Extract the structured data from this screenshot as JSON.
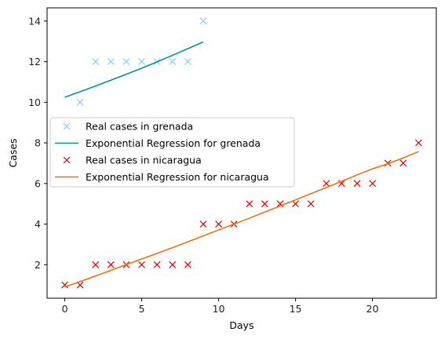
{
  "chart_data": {
    "type": "scatter",
    "title": "",
    "xlabel": "Days",
    "ylabel": "Cases",
    "xlim": [
      -1.15,
      24.15
    ],
    "ylim": [
      0.35,
      14.65
    ],
    "xticks": [
      0,
      5,
      10,
      15,
      20
    ],
    "yticks": [
      2,
      4,
      6,
      8,
      10,
      12,
      14
    ],
    "grid": false,
    "legend_position": "center-left",
    "series": [
      {
        "name": "Real cases in grenada",
        "kind": "points",
        "marker": "x",
        "color": "#87ceeb",
        "x": [
          0,
          1,
          2,
          3,
          4,
          5,
          6,
          7,
          8,
          9
        ],
        "y": [
          9,
          10,
          12,
          12,
          12,
          12,
          12,
          12,
          12,
          14
        ]
      },
      {
        "name": "Exponential Regression for grenada",
        "kind": "line",
        "color": "#009688",
        "x": [
          0,
          1,
          2,
          3,
          4,
          5,
          6,
          7,
          8,
          9
        ],
        "y": [
          10.25,
          10.52,
          10.8,
          11.09,
          11.38,
          11.68,
          11.99,
          12.31,
          12.64,
          12.97
        ]
      },
      {
        "name": "Real cases in nicaragua",
        "kind": "points",
        "marker": "x",
        "color": "#e00000",
        "x": [
          0,
          1,
          2,
          3,
          4,
          5,
          6,
          7,
          8,
          9,
          10,
          11,
          12,
          13,
          14,
          15,
          16,
          17,
          18,
          19,
          20,
          21,
          22,
          23
        ],
        "y": [
          1,
          1,
          2,
          2,
          2,
          2,
          2,
          2,
          2,
          4,
          4,
          4,
          5,
          5,
          5,
          5,
          5,
          6,
          6,
          6,
          6,
          7,
          7,
          8
        ]
      },
      {
        "name": "Exponential Regression for nicaragua",
        "kind": "line",
        "color": "#f07010",
        "x": [
          0,
          1,
          2,
          3,
          4,
          5,
          6,
          7,
          8,
          9,
          10,
          11,
          12,
          13,
          14,
          15,
          16,
          17,
          18,
          19,
          20,
          21,
          22,
          23
        ],
        "y": [
          0.9,
          1.17,
          1.44,
          1.72,
          2.0,
          2.28,
          2.56,
          2.84,
          3.13,
          3.42,
          3.71,
          4.0,
          4.29,
          4.59,
          4.89,
          5.19,
          5.5,
          5.8,
          6.11,
          6.42,
          6.72,
          6.97,
          7.26,
          7.57
        ]
      }
    ]
  }
}
